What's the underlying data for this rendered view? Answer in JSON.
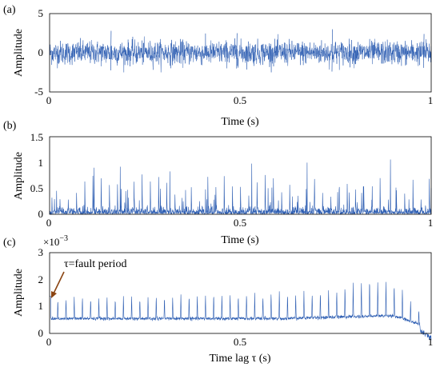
{
  "chart_data": [
    {
      "panel_label": "(a)",
      "type": "line",
      "xlabel": "Time (s)",
      "ylabel": "Amplitude",
      "xlim": [
        0,
        1
      ],
      "ylim": [
        -5,
        5
      ],
      "xticks": [
        "0",
        "0.5",
        "1"
      ],
      "yticks": [
        "-5",
        "0",
        "5"
      ],
      "series_color": "#2f5fb3",
      "approx_range": [
        -2.5,
        3.0
      ],
      "notable_peaks": [
        {
          "x": 0.16,
          "y": 2.8
        },
        {
          "x": 0.49,
          "y": 2.5
        },
        {
          "x": 0.74,
          "y": 3.0
        },
        {
          "x": 0.98,
          "y": 2.4
        }
      ]
    },
    {
      "panel_label": "(b)",
      "type": "line",
      "xlabel": "Time (s)",
      "ylabel": "Amplitude",
      "xlim": [
        0,
        1
      ],
      "ylim": [
        0,
        1.5
      ],
      "xticks": [
        "0",
        "0.5",
        "1"
      ],
      "yticks": [
        "0",
        "0.5",
        "1",
        "1.5"
      ],
      "series_color": "#2f5fb3",
      "notable_peaks": [
        {
          "x": 0.117,
          "y": 0.9
        },
        {
          "x": 0.185,
          "y": 0.92
        },
        {
          "x": 0.315,
          "y": 0.83
        },
        {
          "x": 0.53,
          "y": 0.98
        },
        {
          "x": 0.675,
          "y": 1.0
        },
        {
          "x": 0.893,
          "y": 1.06
        }
      ]
    },
    {
      "panel_label": "(c)",
      "type": "line",
      "xlabel": "Time lag τ (s)",
      "ylabel": "Amplitude",
      "y_multiplier": "×10",
      "y_multiplier_exp": "−3",
      "xlim": [
        0,
        1
      ],
      "ylim": [
        0,
        3
      ],
      "xticks": [
        "0",
        "0.5",
        "1"
      ],
      "yticks": [
        "0",
        "1",
        "2",
        "3"
      ],
      "series_color": "#2f5fb3",
      "annotation": "τ=fault period",
      "annotation_arrow_color": "#8b4513",
      "fault_period_s": 0.0215,
      "baseline": 0.55,
      "peak_height_start": 1.38,
      "peak_height_mid": 1.6,
      "peak_height_max": 2.2,
      "peak_max_at": 0.845
    }
  ]
}
